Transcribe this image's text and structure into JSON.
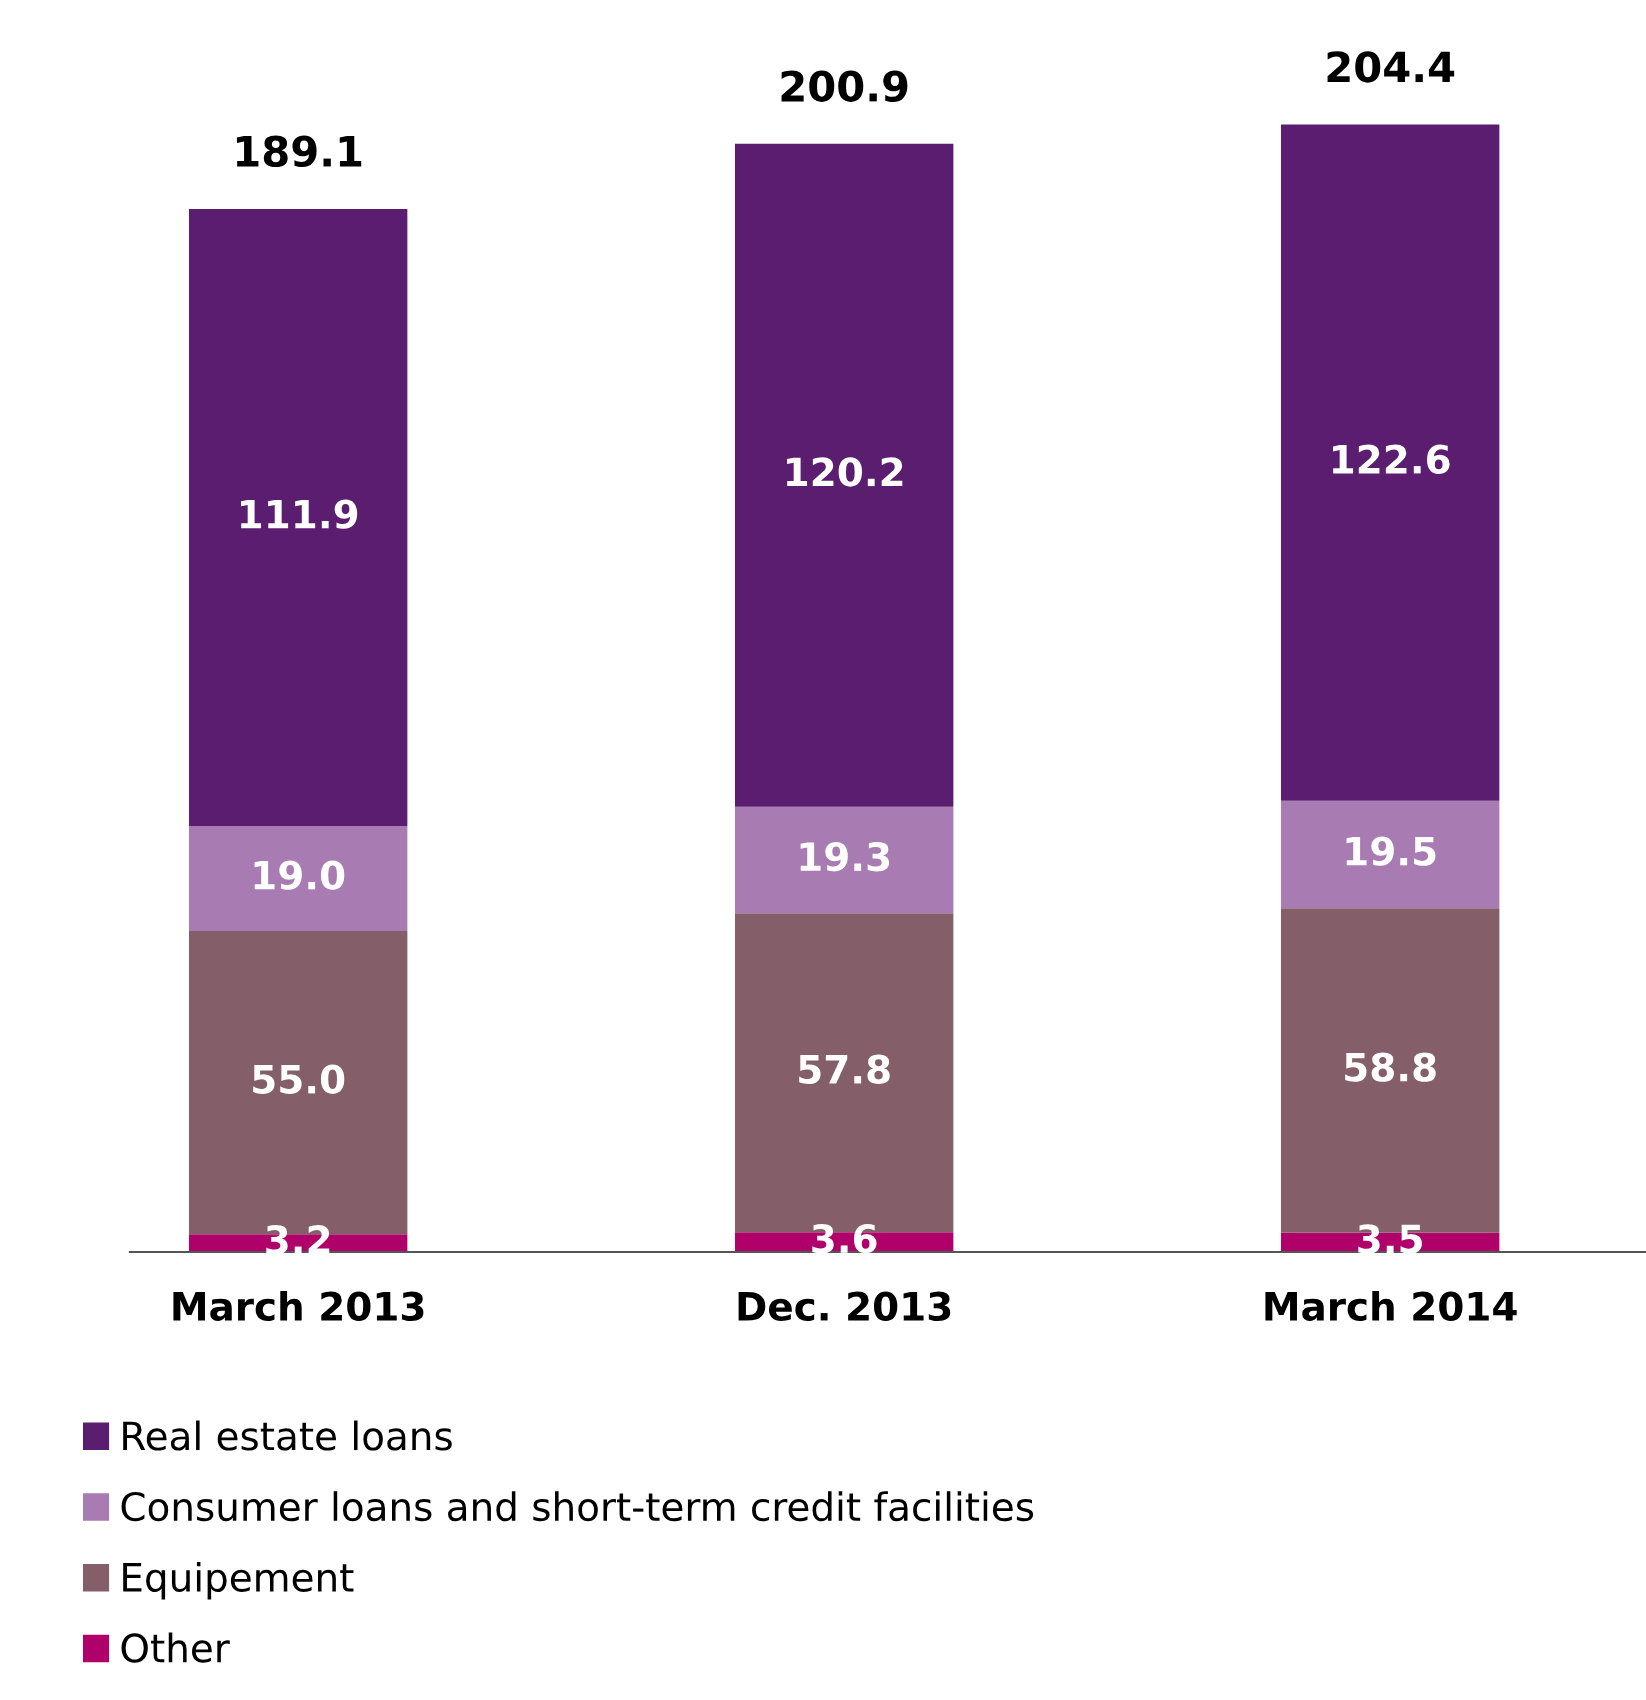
{
  "chart_data": {
    "type": "bar",
    "stacked": true,
    "categories": [
      "March 2013",
      "Dec. 2013",
      "March 2014"
    ],
    "series": [
      {
        "name": "Other",
        "color": "#b0006a",
        "values": [
          3.2,
          3.6,
          3.5
        ],
        "value_labels": [
          "3.2",
          "3.6",
          "3.5"
        ]
      },
      {
        "name": "Equipement",
        "color": "#845e68",
        "values": [
          55.0,
          57.8,
          58.8
        ],
        "value_labels": [
          "55.0",
          "57.8",
          "58.8"
        ]
      },
      {
        "name": "Consumer loans and short-term credit facilities",
        "color": "#a87bb2",
        "values": [
          19.0,
          19.3,
          19.5
        ],
        "value_labels": [
          "19.0",
          "19.3",
          "19.5"
        ]
      },
      {
        "name": "Real estate loans",
        "color": "#5a1d6f",
        "values": [
          111.9,
          120.2,
          122.6
        ],
        "value_labels": [
          "111.9",
          "120.2",
          "122.6"
        ]
      }
    ],
    "totals": [
      "189.1",
      "200.9",
      "204.4"
    ],
    "legend": "bottom",
    "grid": false,
    "tick_labels": "x"
  }
}
